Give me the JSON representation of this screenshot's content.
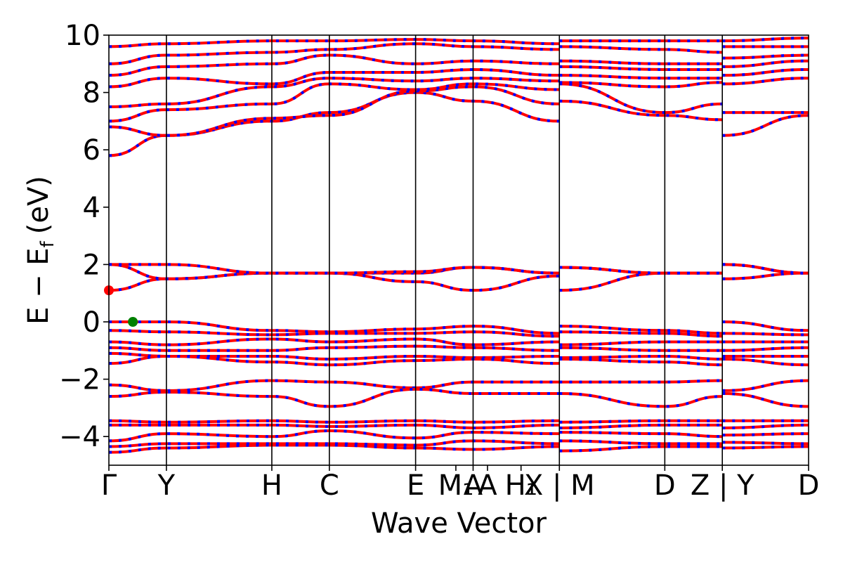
{
  "chart_data": {
    "type": "line",
    "title": "",
    "xlabel": "Wave Vector",
    "ylabel_main": "E − E",
    "ylabel_sub": "f",
    "ylabel_unit": "(eV)",
    "ylim": [
      -5,
      10
    ],
    "yticks": [
      10,
      8,
      6,
      4,
      2,
      0,
      -2,
      -4
    ],
    "ytick_labels": [
      "10",
      "8",
      "6",
      "4",
      "2",
      "0",
      "−2",
      "−4"
    ],
    "kpath_ticks": [
      {
        "label": "Γ",
        "x": 0.0
      },
      {
        "label": "Y",
        "x": 0.6
      },
      {
        "label": "H",
        "x": 1.7
      },
      {
        "label": "C",
        "x": 2.3
      },
      {
        "label": "E",
        "x": 3.2
      },
      {
        "label": "M₁",
        "x": 3.62
      },
      {
        "label": "A",
        "x": 3.8
      },
      {
        "label": "A",
        "x": 3.95
      },
      {
        "label": "H₁",
        "x": 4.3
      },
      {
        "label": "X | M",
        "x": 4.7
      },
      {
        "label": "D",
        "x": 5.8
      },
      {
        "label": "Z | Y",
        "x": 6.4
      },
      {
        "label": "D",
        "x": 7.3
      }
    ],
    "segment_boundaries": [
      0.0,
      0.6,
      1.7,
      2.3,
      3.2,
      3.8,
      4.7,
      5.8,
      6.4,
      7.3
    ],
    "xlim": [
      0.0,
      7.3
    ],
    "band_style": {
      "up_color": "#ff0000",
      "down_color": "#0000ff"
    },
    "markers": [
      {
        "name": "CBM",
        "x": 0.0,
        "y": 1.1,
        "color": "#ff0000"
      },
      {
        "name": "VBM",
        "x": 0.25,
        "y": 0.0,
        "color": "#008000"
      }
    ],
    "bands": [
      {
        "name": "c1",
        "y": [
          1.1,
          1.5,
          1.7,
          1.7,
          1.4,
          1.1,
          1.6,
          1.1,
          1.7,
          1.7,
          1.5,
          1.7
        ]
      },
      {
        "name": "c2",
        "y": [
          2.0,
          1.5,
          1.7,
          1.7,
          1.7,
          1.9,
          1.7,
          1.9,
          1.7,
          1.7,
          2.0,
          1.7
        ]
      },
      {
        "name": "c3",
        "y": [
          2.0,
          2.0,
          1.7,
          1.7,
          1.75,
          1.9,
          1.7,
          1.9,
          1.7,
          1.7,
          2.0,
          1.7
        ]
      },
      {
        "name": "c4",
        "y": [
          5.8,
          6.5,
          7.0,
          7.3,
          8.0,
          7.7,
          7.0,
          7.7,
          7.2,
          7.05,
          6.5,
          7.2
        ]
      },
      {
        "name": "c5",
        "y": [
          6.8,
          6.5,
          7.1,
          7.2,
          8.05,
          8.2,
          7.6,
          8.3,
          7.3,
          7.6,
          7.3,
          7.3
        ]
      },
      {
        "name": "c6",
        "y": [
          7.0,
          7.4,
          7.6,
          8.3,
          8.1,
          8.3,
          8.1,
          8.35,
          8.2,
          8.35,
          8.3,
          8.5
        ]
      },
      {
        "name": "c7",
        "y": [
          7.5,
          7.6,
          8.2,
          8.5,
          8.4,
          8.5,
          8.4,
          8.6,
          8.5,
          8.5,
          8.6,
          8.8
        ]
      },
      {
        "name": "c8",
        "y": [
          8.2,
          8.5,
          8.3,
          8.7,
          8.7,
          8.8,
          8.6,
          8.9,
          8.8,
          8.8,
          8.9,
          9.1
        ]
      },
      {
        "name": "c9",
        "y": [
          8.6,
          8.9,
          9.0,
          9.3,
          9.0,
          9.1,
          9.0,
          9.1,
          9.0,
          9.0,
          9.2,
          9.3
        ]
      },
      {
        "name": "c10",
        "y": [
          9.0,
          9.3,
          9.4,
          9.5,
          9.7,
          9.6,
          9.5,
          9.6,
          9.5,
          9.4,
          9.6,
          9.6
        ]
      },
      {
        "name": "c11",
        "y": [
          9.6,
          9.7,
          9.8,
          9.8,
          9.85,
          9.8,
          9.7,
          9.8,
          9.8,
          9.8,
          9.8,
          9.9
        ]
      },
      {
        "name": "v1",
        "y": [
          0.0,
          0.0,
          -0.3,
          -0.35,
          -0.25,
          -0.15,
          -0.4,
          -0.15,
          -0.3,
          -0.4,
          0.0,
          -0.3
        ]
      },
      {
        "name": "v2",
        "y": [
          -0.3,
          -0.35,
          -0.45,
          -0.4,
          -0.4,
          -0.35,
          -0.5,
          -0.35,
          -0.4,
          -0.5,
          -0.4,
          -0.45
        ]
      },
      {
        "name": "v3",
        "y": [
          -0.7,
          -0.8,
          -0.6,
          -0.7,
          -0.6,
          -0.8,
          -0.7,
          -0.8,
          -0.7,
          -0.7,
          -0.7,
          -0.7
        ]
      },
      {
        "name": "v4",
        "y": [
          -0.9,
          -1.0,
          -1.0,
          -0.9,
          -0.85,
          -0.9,
          -1.0,
          -0.9,
          -1.0,
          -1.0,
          -1.0,
          -0.9
        ]
      },
      {
        "name": "v5",
        "y": [
          -1.1,
          -1.2,
          -1.2,
          -1.3,
          -1.2,
          -1.25,
          -1.2,
          -1.25,
          -1.2,
          -1.3,
          -1.2,
          -1.2
        ]
      },
      {
        "name": "v6",
        "y": [
          -1.45,
          -1.2,
          -1.4,
          -1.5,
          -1.35,
          -1.3,
          -1.45,
          -1.3,
          -1.4,
          -1.5,
          -1.3,
          -1.5
        ]
      },
      {
        "name": "v7",
        "y": [
          -2.2,
          -2.4,
          -2.05,
          -2.1,
          -2.3,
          -2.1,
          -2.1,
          -2.1,
          -2.1,
          -2.05,
          -2.4,
          -2.05
        ]
      },
      {
        "name": "v8",
        "y": [
          -2.6,
          -2.45,
          -2.6,
          -2.95,
          -2.35,
          -2.5,
          -2.5,
          -2.5,
          -2.95,
          -2.6,
          -2.5,
          -2.95
        ]
      },
      {
        "name": "v9",
        "y": [
          -3.45,
          -3.5,
          -3.45,
          -3.5,
          -3.45,
          -3.5,
          -3.45,
          -3.5,
          -3.45,
          -3.45,
          -3.45,
          -3.45
        ]
      },
      {
        "name": "v10",
        "y": [
          -3.6,
          -3.6,
          -3.6,
          -3.65,
          -3.6,
          -3.7,
          -3.6,
          -3.7,
          -3.6,
          -3.6,
          -3.7,
          -3.6
        ]
      },
      {
        "name": "v11",
        "y": [
          -4.15,
          -3.9,
          -4.0,
          -3.8,
          -4.05,
          -3.85,
          -3.9,
          -3.85,
          -3.9,
          -4.0,
          -3.95,
          -3.9
        ]
      },
      {
        "name": "v12",
        "y": [
          -4.35,
          -4.25,
          -4.25,
          -4.25,
          -4.3,
          -4.15,
          -4.25,
          -4.15,
          -4.25,
          -4.25,
          -4.2,
          -4.25
        ]
      },
      {
        "name": "v13",
        "y": [
          -4.55,
          -4.4,
          -4.3,
          -4.3,
          -4.4,
          -4.45,
          -4.35,
          -4.5,
          -4.35,
          -4.35,
          -4.4,
          -4.35
        ]
      }
    ]
  }
}
